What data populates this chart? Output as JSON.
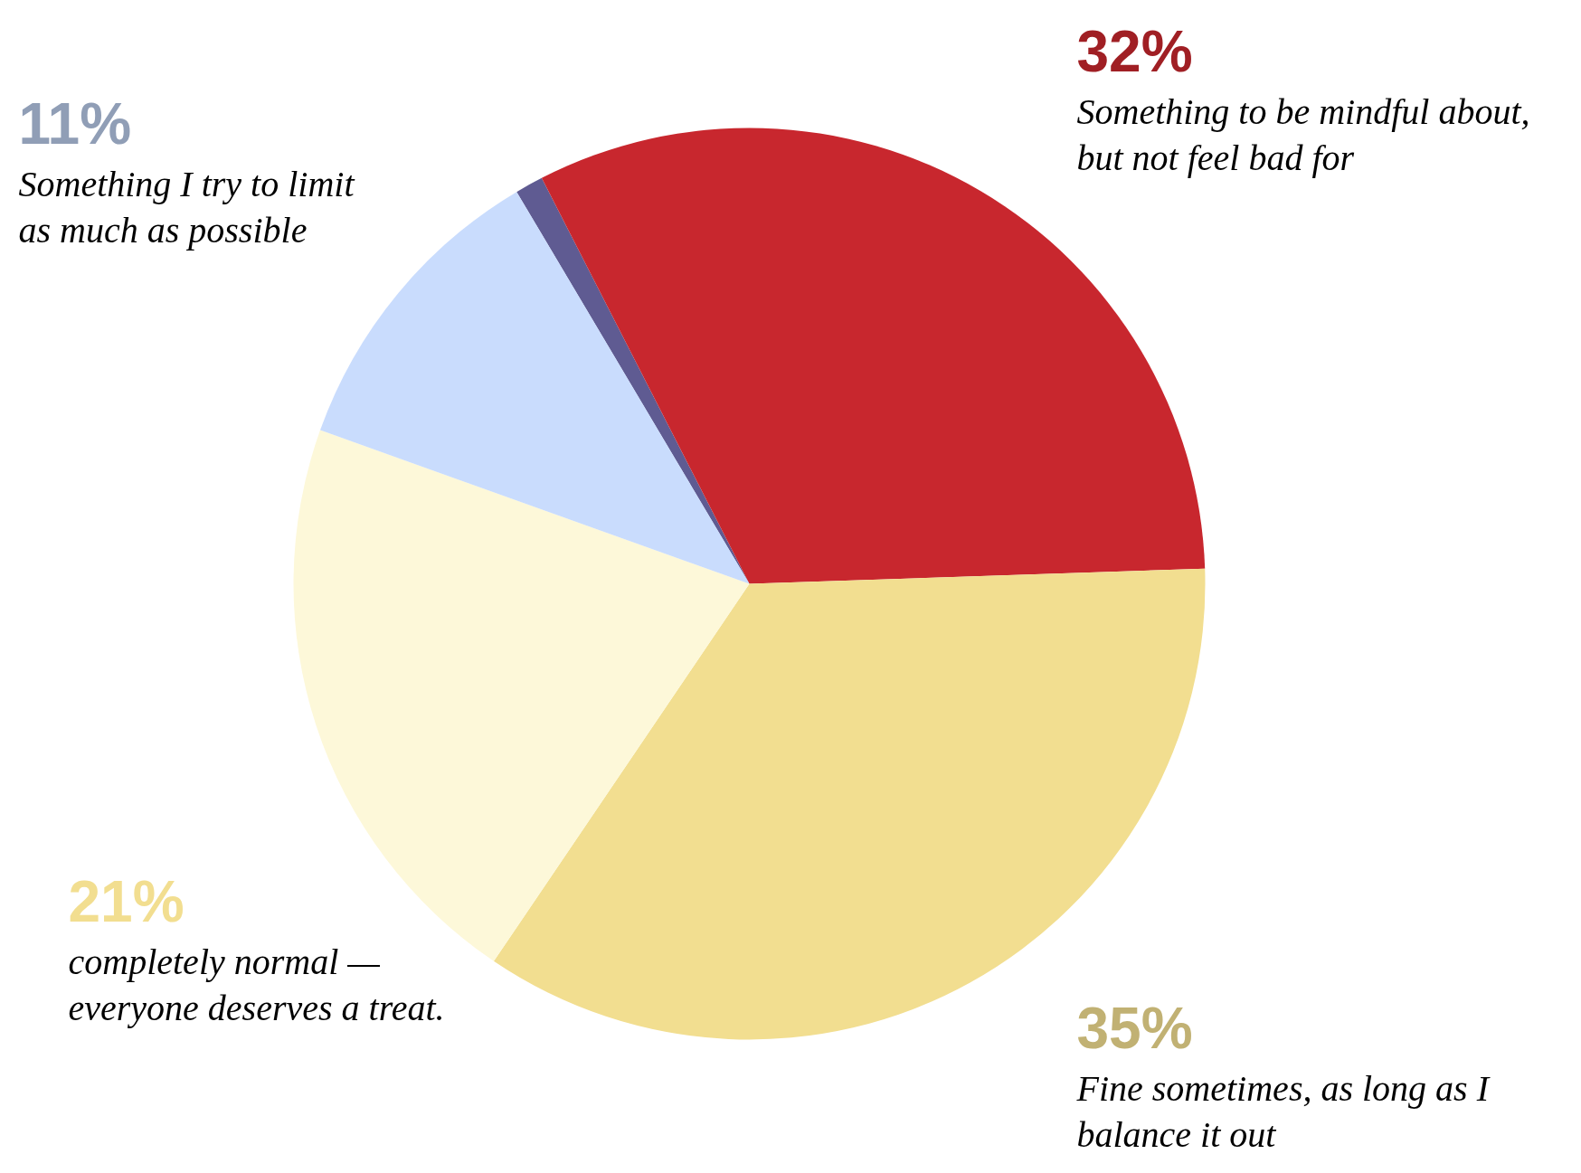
{
  "chart_data": {
    "type": "pie",
    "categories": [
      null,
      "Something to be mindful about, but not feel bad for",
      "Fine sometimes, as long as I balance it out",
      "completely normal — everyone deserves a treat.",
      "Something I try to limit as much as possible"
    ],
    "values": [
      1,
      32,
      35,
      21,
      11
    ],
    "colors": [
      "#5f5b92",
      "#c8272e",
      "#f2de90",
      "#fdf8d9",
      "#c9dcfd"
    ],
    "value_labels": [
      null,
      "32%",
      "35%",
      "21%",
      "11%"
    ]
  }
}
